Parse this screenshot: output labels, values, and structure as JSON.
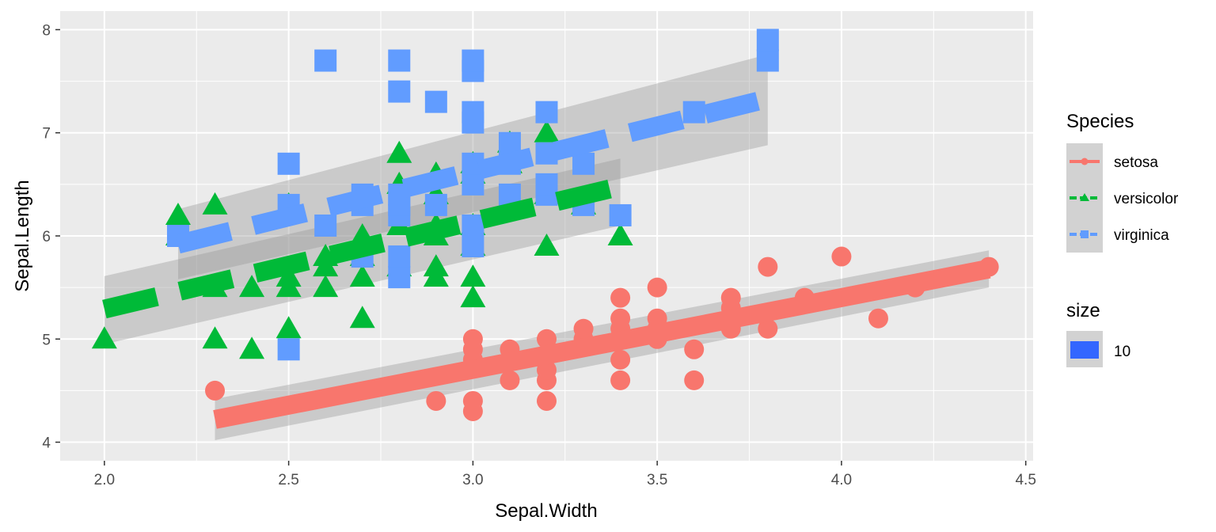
{
  "chart_data": {
    "type": "scatter",
    "xlabel": "Sepal.Width",
    "ylabel": "Sepal.Length",
    "xlim": [
      1.88,
      4.52
    ],
    "ylim": [
      3.82,
      8.18
    ],
    "x_ticks": [
      "2.0",
      "2.5",
      "3.0",
      "3.5",
      "4.0",
      "4.5"
    ],
    "y_ticks": [
      "4",
      "5",
      "6",
      "7",
      "8"
    ],
    "grid": true,
    "legend_placement": "right",
    "legend": {
      "species_title": "Species",
      "size_title": "size",
      "size_value": "10",
      "size_color": "#3366ff"
    },
    "series": [
      {
        "name": "setosa",
        "color": "#f8766d",
        "marker": "circle",
        "linetype": "solid",
        "points": [
          [
            2.3,
            4.5
          ],
          [
            2.9,
            4.4
          ],
          [
            3.0,
            4.3
          ],
          [
            3.0,
            4.4
          ],
          [
            3.0,
            4.8
          ],
          [
            3.0,
            4.9
          ],
          [
            3.0,
            5.0
          ],
          [
            3.1,
            4.6
          ],
          [
            3.1,
            4.8
          ],
          [
            3.1,
            4.9
          ],
          [
            3.2,
            4.4
          ],
          [
            3.2,
            4.6
          ],
          [
            3.2,
            4.7
          ],
          [
            3.2,
            5.0
          ],
          [
            3.3,
            5.0
          ],
          [
            3.3,
            5.1
          ],
          [
            3.4,
            4.6
          ],
          [
            3.4,
            4.8
          ],
          [
            3.4,
            5.0
          ],
          [
            3.4,
            5.1
          ],
          [
            3.4,
            5.2
          ],
          [
            3.4,
            5.4
          ],
          [
            3.5,
            5.0
          ],
          [
            3.5,
            5.1
          ],
          [
            3.5,
            5.2
          ],
          [
            3.5,
            5.5
          ],
          [
            3.6,
            4.6
          ],
          [
            3.6,
            4.9
          ],
          [
            3.7,
            5.1
          ],
          [
            3.7,
            5.3
          ],
          [
            3.7,
            5.4
          ],
          [
            3.8,
            5.1
          ],
          [
            3.8,
            5.7
          ],
          [
            3.9,
            5.4
          ],
          [
            4.0,
            5.8
          ],
          [
            4.1,
            5.2
          ],
          [
            4.2,
            5.5
          ],
          [
            4.4,
            5.7
          ]
        ],
        "fit": {
          "x": [
            2.3,
            4.4
          ],
          "y": [
            4.22,
            5.68
          ]
        },
        "band_lower": [
          4.02,
          5.5
        ],
        "band_upper": [
          4.42,
          5.86
        ]
      },
      {
        "name": "versicolor",
        "color": "#00ba38",
        "marker": "triangle",
        "linetype": "dashed",
        "points": [
          [
            2.0,
            5.0
          ],
          [
            2.2,
            6.0
          ],
          [
            2.2,
            6.2
          ],
          [
            2.3,
            5.0
          ],
          [
            2.3,
            5.5
          ],
          [
            2.3,
            6.3
          ],
          [
            2.4,
            4.9
          ],
          [
            2.4,
            5.5
          ],
          [
            2.5,
            5.1
          ],
          [
            2.5,
            5.5
          ],
          [
            2.5,
            5.6
          ],
          [
            2.5,
            6.3
          ],
          [
            2.6,
            5.5
          ],
          [
            2.6,
            5.7
          ],
          [
            2.6,
            5.8
          ],
          [
            2.7,
            5.2
          ],
          [
            2.7,
            5.6
          ],
          [
            2.7,
            5.8
          ],
          [
            2.7,
            6.0
          ],
          [
            2.8,
            5.7
          ],
          [
            2.8,
            6.1
          ],
          [
            2.8,
            6.5
          ],
          [
            2.8,
            6.8
          ],
          [
            2.9,
            5.6
          ],
          [
            2.9,
            5.7
          ],
          [
            2.9,
            6.0
          ],
          [
            2.9,
            6.1
          ],
          [
            2.9,
            6.4
          ],
          [
            2.9,
            6.6
          ],
          [
            3.0,
            5.4
          ],
          [
            3.0,
            5.6
          ],
          [
            3.0,
            5.9
          ],
          [
            3.0,
            6.1
          ],
          [
            3.0,
            6.6
          ],
          [
            3.0,
            6.7
          ],
          [
            3.1,
            6.7
          ],
          [
            3.1,
            6.9
          ],
          [
            3.2,
            5.9
          ],
          [
            3.2,
            6.4
          ],
          [
            3.2,
            7.0
          ],
          [
            3.3,
            6.3
          ],
          [
            3.4,
            6.0
          ]
        ],
        "fit": {
          "x": [
            2.0,
            3.4
          ],
          "y": [
            5.29,
            6.48
          ]
        },
        "band_lower": [
          4.95,
          6.1
        ],
        "band_upper": [
          5.61,
          6.75
        ]
      },
      {
        "name": "virginica",
        "color": "#619cff",
        "marker": "square",
        "linetype": "dashed",
        "points": [
          [
            2.2,
            6.0
          ],
          [
            2.5,
            4.9
          ],
          [
            2.5,
            6.3
          ],
          [
            2.5,
            6.7
          ],
          [
            2.6,
            6.1
          ],
          [
            2.6,
            7.7
          ],
          [
            2.7,
            5.8
          ],
          [
            2.7,
            6.3
          ],
          [
            2.7,
            6.4
          ],
          [
            2.8,
            5.6
          ],
          [
            2.8,
            5.8
          ],
          [
            2.8,
            6.2
          ],
          [
            2.8,
            6.3
          ],
          [
            2.8,
            6.4
          ],
          [
            2.8,
            7.4
          ],
          [
            2.8,
            7.7
          ],
          [
            2.9,
            6.3
          ],
          [
            2.9,
            7.3
          ],
          [
            3.0,
            5.9
          ],
          [
            3.0,
            6.1
          ],
          [
            3.0,
            6.5
          ],
          [
            3.0,
            6.7
          ],
          [
            3.0,
            7.1
          ],
          [
            3.0,
            7.2
          ],
          [
            3.0,
            7.6
          ],
          [
            3.0,
            7.7
          ],
          [
            3.1,
            6.4
          ],
          [
            3.1,
            6.7
          ],
          [
            3.1,
            6.9
          ],
          [
            3.2,
            6.4
          ],
          [
            3.2,
            6.5
          ],
          [
            3.2,
            6.8
          ],
          [
            3.2,
            7.2
          ],
          [
            3.3,
            6.3
          ],
          [
            3.3,
            6.7
          ],
          [
            3.4,
            6.2
          ],
          [
            3.6,
            7.2
          ],
          [
            3.8,
            7.7
          ],
          [
            3.8,
            7.9
          ]
        ],
        "fit": {
          "x": [
            2.2,
            3.8
          ],
          "y": [
            5.92,
            7.33
          ]
        },
        "band_lower": [
          5.58,
          6.88
        ],
        "band_upper": [
          6.26,
          7.76
        ]
      }
    ]
  }
}
